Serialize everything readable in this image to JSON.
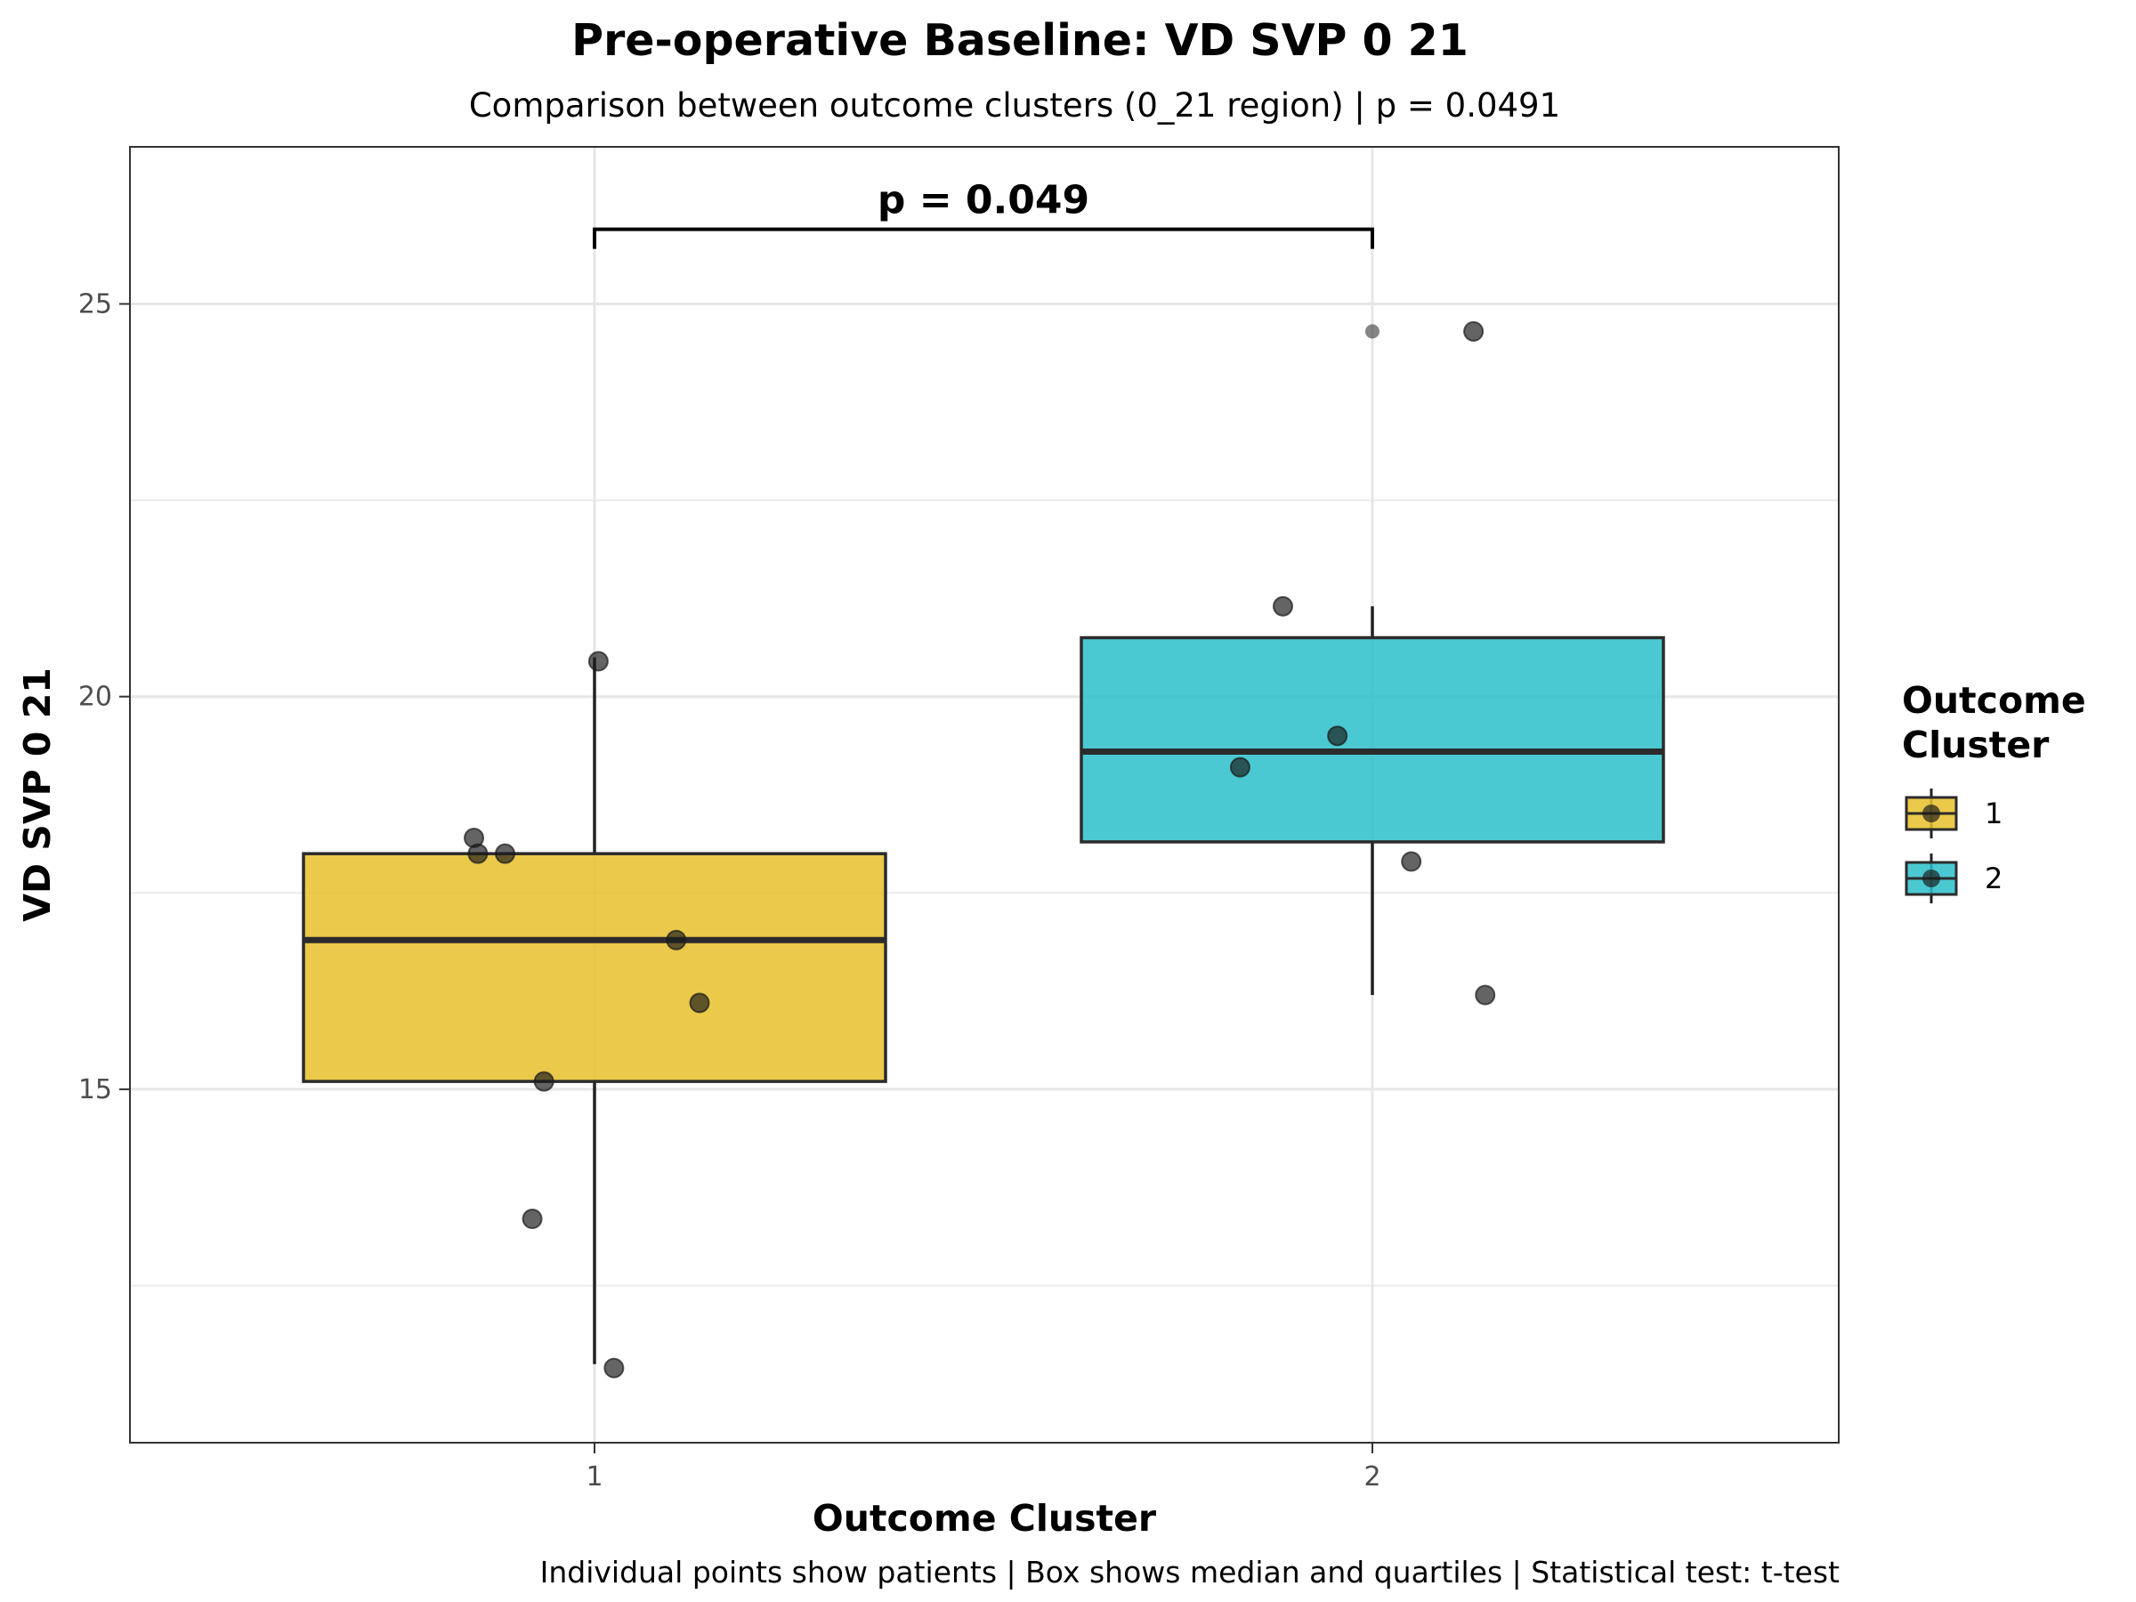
{
  "chart_data": {
    "type": "box",
    "title": "Pre-operative Baseline: VD SVP 0 21",
    "subtitle": "Comparison between outcome clusters (0_21 region) | p = 0.0491",
    "xlabel": "Outcome Cluster",
    "ylabel": "VD SVP 0 21",
    "caption": "Individual points show patients | Box shows median and quartiles | Statistical test: t-test",
    "categories": [
      "1",
      "2"
    ],
    "ylim": [
      10.5,
      27.0
    ],
    "y_ticks": [
      15,
      20,
      25
    ],
    "y_tick_labels": [
      "15",
      "20",
      "25"
    ],
    "grid": true,
    "legend": {
      "title_line1": "Outcome",
      "title_line2": "Cluster",
      "position": "right",
      "entries": [
        "1",
        "2"
      ]
    },
    "annotation": {
      "label": "p = 0.049",
      "between": [
        "1",
        "2"
      ],
      "y": 25.95
    },
    "series": [
      {
        "category": "1",
        "color": "#E8BF2A",
        "q1": 15.1,
        "median": 16.9,
        "q3": 18.0,
        "whisker_low": 11.5,
        "whisker_high": 20.5,
        "points": [
          {
            "x": 0.845,
            "y": 18.2
          },
          {
            "x": 0.85,
            "y": 18.0
          },
          {
            "x": 0.885,
            "y": 18.0
          },
          {
            "x": 1.005,
            "y": 20.45
          },
          {
            "x": 1.105,
            "y": 16.9
          },
          {
            "x": 1.135,
            "y": 16.1
          },
          {
            "x": 0.935,
            "y": 15.1
          },
          {
            "x": 0.92,
            "y": 13.35
          },
          {
            "x": 1.025,
            "y": 11.45
          }
        ]
      },
      {
        "category": "2",
        "color": "#2CBFCA",
        "q1": 18.15,
        "median": 19.3,
        "q3": 20.75,
        "whisker_low": 16.2,
        "whisker_high": 21.15,
        "outliers": [
          {
            "x": 2.0,
            "y": 24.65
          }
        ],
        "points": [
          {
            "x": 2.13,
            "y": 24.65
          },
          {
            "x": 1.885,
            "y": 21.15
          },
          {
            "x": 1.955,
            "y": 19.5
          },
          {
            "x": 1.83,
            "y": 19.1
          },
          {
            "x": 2.05,
            "y": 17.9
          },
          {
            "x": 2.145,
            "y": 16.2
          }
        ]
      }
    ]
  }
}
